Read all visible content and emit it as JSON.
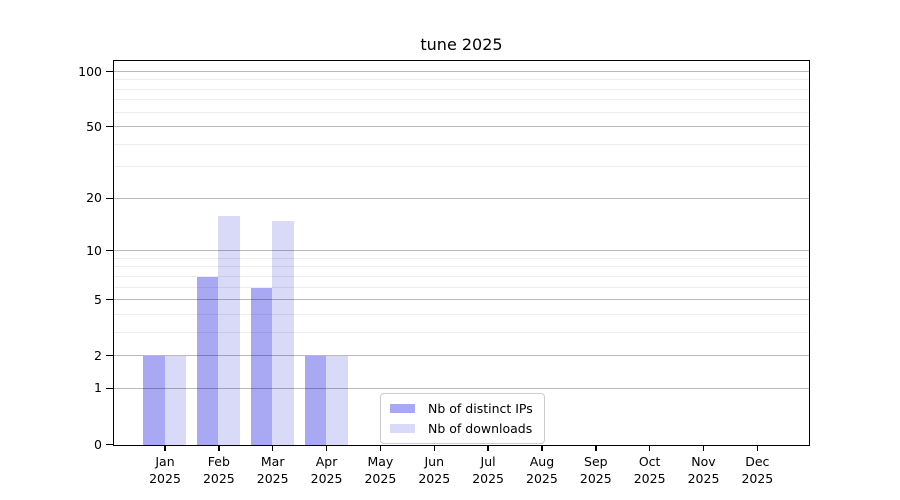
{
  "title": "tune 2025",
  "chart_data": {
    "type": "bar",
    "title": "tune 2025",
    "categories": [
      "Jan",
      "Feb",
      "Mar",
      "Apr",
      "May",
      "Jun",
      "Jul",
      "Aug",
      "Sep",
      "Oct",
      "Nov",
      "Dec"
    ],
    "year_label": "2025",
    "series": [
      {
        "name": "Nb of distinct IPs",
        "color": "#a9a9f3",
        "values": [
          2,
          7,
          6,
          2,
          0,
          0,
          0,
          0,
          0,
          0,
          0,
          0
        ]
      },
      {
        "name": "Nb of downloads",
        "color": "#d9d9f8",
        "values": [
          2,
          16,
          15,
          2,
          0,
          0,
          0,
          0,
          0,
          0,
          0,
          0
        ]
      }
    ],
    "xlabel": "",
    "ylabel": "",
    "yscale": "symlog-ln(1+v)",
    "ylim": [
      0,
      113
    ],
    "y_major_ticks": [
      0,
      1,
      2,
      5,
      10,
      20,
      50,
      100
    ],
    "y_minor_gridlines": [
      3,
      4,
      6,
      7,
      8,
      9,
      30,
      40,
      60,
      70,
      80,
      90
    ],
    "grid": "horizontal, drawn above bars",
    "legend_position": "bottom-center inside plot"
  },
  "colors": {
    "background": "#ffffff",
    "spine": "#000000",
    "major_grid": "rgba(0,0,0,0.27)",
    "minor_grid": "rgba(0,0,0,0.07)",
    "bar_dark": "#a9a9f3",
    "bar_light": "#d9d9f8",
    "legend_border": "#cccccc"
  }
}
